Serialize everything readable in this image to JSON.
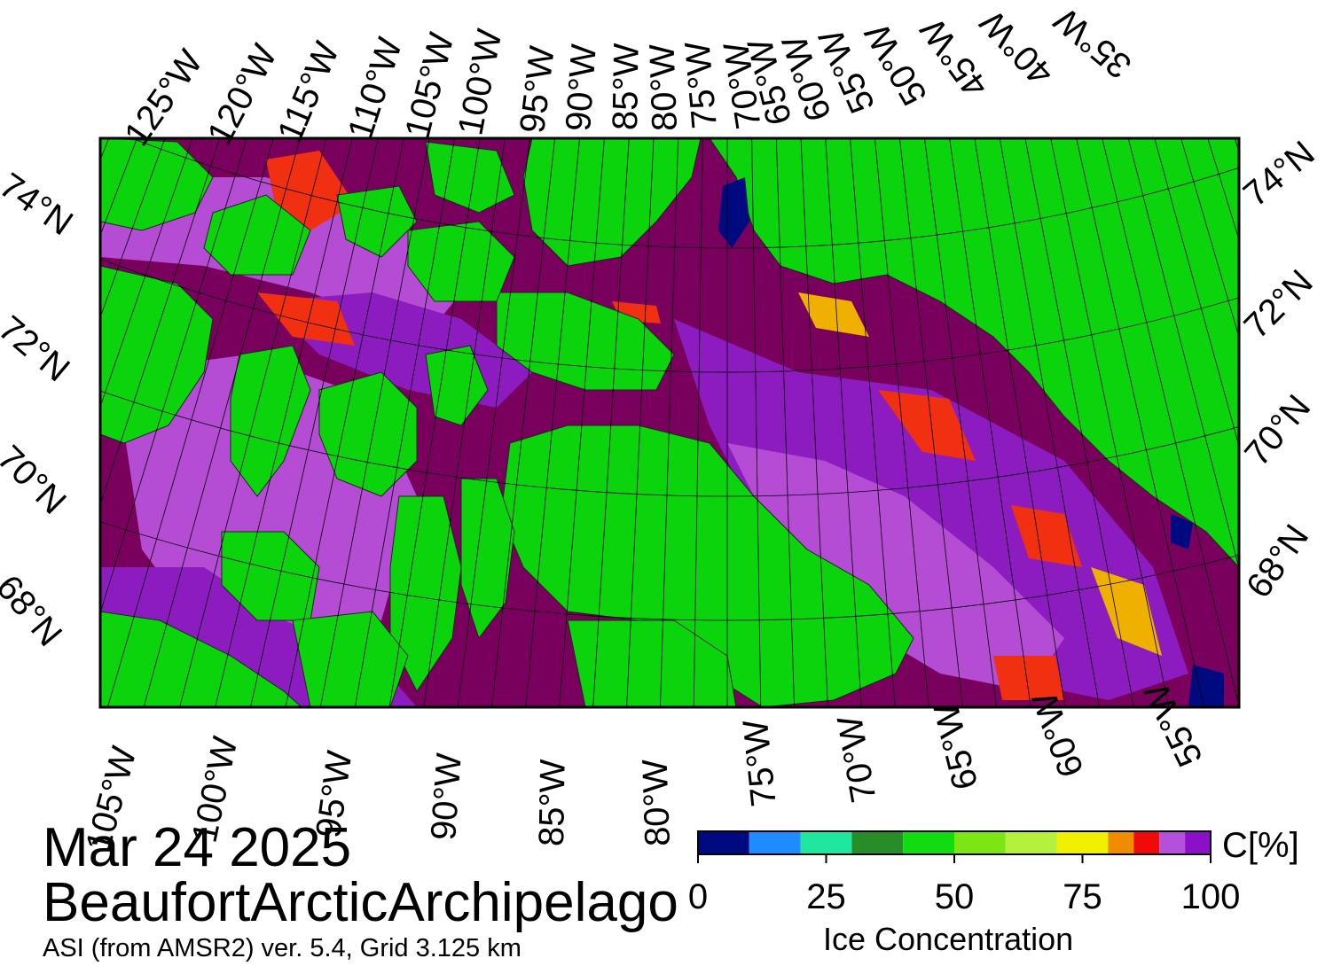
{
  "date": "Mar 24 2025",
  "region": "BeaufortArcticArchipelago",
  "source": "ASI (from AMSR2) ver. 5.4,  Grid 3.125 km",
  "colorbar": {
    "title": "Ice Concentration",
    "unit": "C[%]",
    "ticks": [
      "0",
      "25",
      "50",
      "75",
      "100"
    ],
    "colors": [
      "#000a80",
      "#1e8cff",
      "#1ee8a0",
      "#288c28",
      "#10dc10",
      "#7ce614",
      "#b4f03c",
      "#f0f000",
      "#f08c00",
      "#f00a0a",
      "#b450dc",
      "#8c10c8"
    ]
  },
  "map": {
    "colors": {
      "land": "#0cd40c",
      "ice_dense": "#7a005e",
      "ice_high": "#8c1cc0",
      "ice_mid": "#b44cd4",
      "ice_low": "#f03010",
      "ice_lower": "#f0b000",
      "water": "#000a80",
      "coast": "#222222",
      "grid": "#000000"
    },
    "top_lon_labels": [
      "125°W",
      "120°W",
      "115°W",
      "110°W",
      "105°W",
      "100°W",
      "95°W",
      "90°W",
      "85°W",
      "80°W",
      "75°W",
      "70°W",
      "65°W",
      "60°W",
      "55°W",
      "50°W",
      "45°W",
      "40°W",
      "35°W"
    ],
    "bottom_lon_labels": [
      "105°W",
      "100°W",
      "95°W",
      "90°W",
      "85°W",
      "80°W",
      "75°W",
      "70°W",
      "65°W",
      "60°W",
      "55°W"
    ],
    "left_lat_labels": [
      "74°N",
      "72°N",
      "70°N",
      "68°N"
    ],
    "right_lat_labels": [
      "74°N",
      "72°N",
      "70°N",
      "68°N"
    ]
  }
}
